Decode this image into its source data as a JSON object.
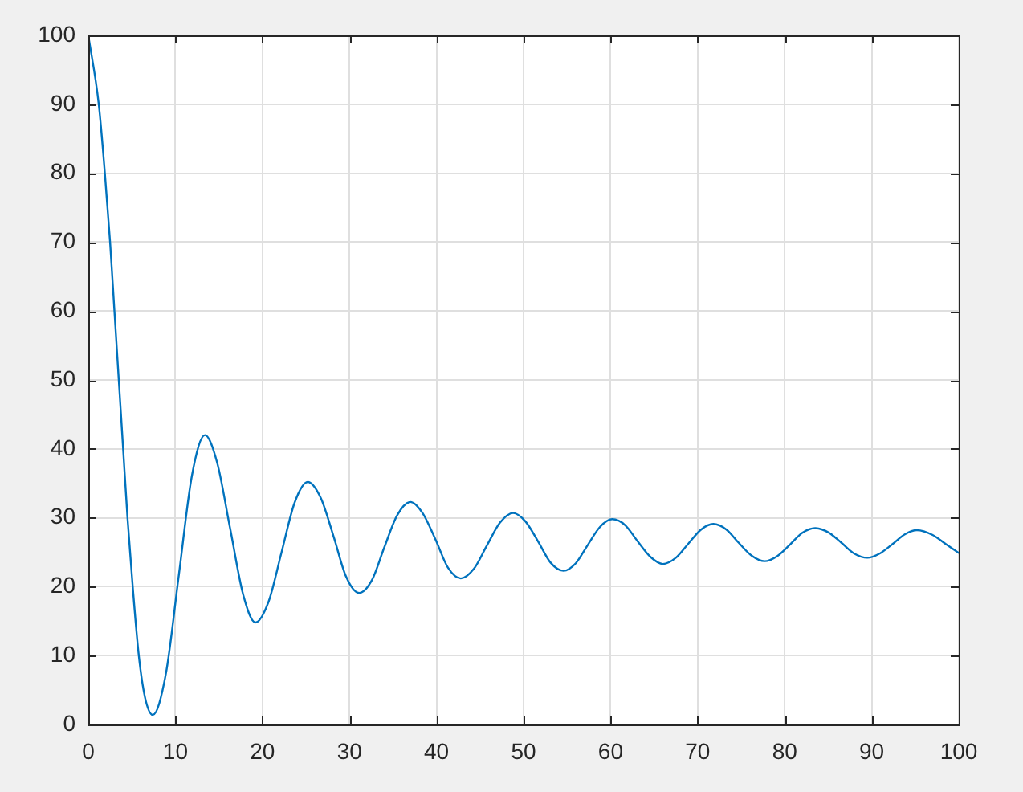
{
  "chart_data": {
    "type": "line",
    "color": "#0072bd",
    "grid": true,
    "x": [
      0,
      1.2,
      1.9,
      2.5,
      3.0,
      3.5,
      4.0,
      4.5,
      5.1,
      5.8,
      6.5,
      7.4,
      8.9,
      10.4,
      11.9,
      13.4,
      14.8,
      16.3,
      17.8,
      19.2,
      20.7,
      22.2,
      23.7,
      25.2,
      26.7,
      28.2,
      29.6,
      31.1,
      32.6,
      34.0,
      35.5,
      37.0,
      38.4,
      39.9,
      41.3,
      42.8,
      44.3,
      45.8,
      47.3,
      48.8,
      50.2,
      51.7,
      53.1,
      54.6,
      56.0,
      57.4,
      58.8,
      60.2,
      61.7,
      63.1,
      64.6,
      66.0,
      67.5,
      68.9,
      70.4,
      71.8,
      73.3,
      74.7,
      76.2,
      77.7,
      79.1,
      80.6,
      82.0,
      83.5,
      85.0,
      86.5,
      88.0,
      89.5,
      90.9,
      92.4,
      93.8,
      95.2,
      97.0,
      98.5,
      100
    ],
    "values": [
      100,
      90,
      80,
      70,
      60,
      50,
      40,
      30,
      20,
      10,
      4,
      1.4,
      7.3,
      21.7,
      36.1,
      42,
      38,
      28.4,
      18.8,
      14.8,
      17.8,
      25,
      32.2,
      35.2,
      32.9,
      27.2,
      21.5,
      19.1,
      21,
      25.7,
      30.4,
      32.3,
      30.7,
      26.8,
      22.8,
      21.2,
      22.6,
      26,
      29.3,
      30.7,
      29.5,
      26.5,
      23.5,
      22.3,
      23.4,
      26.1,
      28.7,
      29.8,
      28.9,
      26.6,
      24.3,
      23.3,
      24.2,
      26.2,
      28.3,
      29.1,
      28.3,
      26.4,
      24.5,
      23.7,
      24.4,
      26.1,
      27.8,
      28.5,
      27.9,
      26.4,
      24.8,
      24.2,
      24.8,
      26.2,
      27.6,
      28.2,
      27.5,
      26.2,
      24.9
    ],
    "xlim": [
      0,
      100
    ],
    "ylim": [
      0,
      100
    ],
    "xticks": [
      0,
      10,
      20,
      30,
      40,
      50,
      60,
      70,
      80,
      90,
      100
    ],
    "yticks": [
      0,
      10,
      20,
      30,
      40,
      50,
      60,
      70,
      80,
      90,
      100
    ]
  }
}
